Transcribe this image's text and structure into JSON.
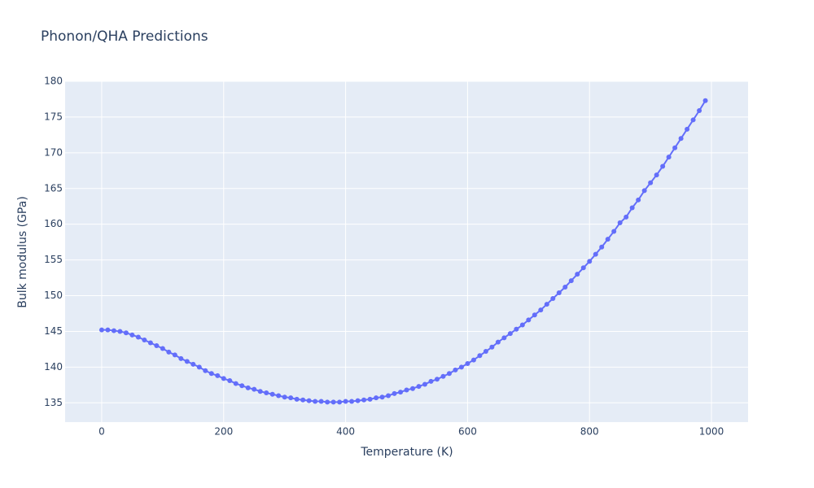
{
  "chart_data": {
    "type": "line",
    "title": "Phonon/QHA Predictions",
    "x_label": "Temperature (K)",
    "y_label": "Bulk modulus (GPa)",
    "x": [
      0,
      10,
      20,
      30,
      40,
      50,
      60,
      70,
      80,
      90,
      100,
      110,
      120,
      130,
      140,
      150,
      160,
      170,
      180,
      190,
      200,
      210,
      220,
      230,
      240,
      250,
      260,
      270,
      280,
      290,
      300,
      310,
      320,
      330,
      340,
      350,
      360,
      370,
      380,
      390,
      400,
      410,
      420,
      430,
      440,
      450,
      460,
      470,
      480,
      490,
      500,
      510,
      520,
      530,
      540,
      550,
      560,
      570,
      580,
      590,
      600,
      610,
      620,
      630,
      640,
      650,
      660,
      670,
      680,
      690,
      700,
      710,
      720,
      730,
      740,
      750,
      760,
      770,
      780,
      790,
      800,
      810,
      820,
      830,
      840,
      850,
      860,
      870,
      880,
      890,
      900,
      910,
      920,
      930,
      940,
      950,
      960,
      970,
      980,
      990
    ],
    "values": [
      145.2,
      145.2,
      145.1,
      145.0,
      144.8,
      144.5,
      144.2,
      143.8,
      143.4,
      143.0,
      142.6,
      142.1,
      141.7,
      141.2,
      140.8,
      140.4,
      140.0,
      139.5,
      139.1,
      138.8,
      138.4,
      138.1,
      137.7,
      137.4,
      137.1,
      136.9,
      136.6,
      136.4,
      136.2,
      136.0,
      135.8,
      135.7,
      135.5,
      135.4,
      135.3,
      135.2,
      135.2,
      135.1,
      135.1,
      135.1,
      135.2,
      135.2,
      135.3,
      135.4,
      135.5,
      135.7,
      135.8,
      136.0,
      136.3,
      136.5,
      136.8,
      137.0,
      137.3,
      137.6,
      138.0,
      138.3,
      138.7,
      139.1,
      139.6,
      140.0,
      140.5,
      141.0,
      141.6,
      142.2,
      142.8,
      143.5,
      144.1,
      144.7,
      145.3,
      145.9,
      146.6,
      147.3,
      148.0,
      148.8,
      149.6,
      150.4,
      151.2,
      152.1,
      153.0,
      153.9,
      154.8,
      155.8,
      156.8,
      157.9,
      159.0,
      160.2,
      161.0,
      162.3,
      163.4,
      164.7,
      165.8,
      166.9,
      168.1,
      169.4,
      170.7,
      172.0,
      173.3,
      174.6,
      175.9,
      177.3
    ],
    "color": "#636efa",
    "xlim": [
      -60,
      1060
    ],
    "xticks": [
      0,
      200,
      400,
      600,
      800,
      1000
    ],
    "ylim": [
      132.3,
      180
    ],
    "yticks": [
      135,
      140,
      145,
      150,
      155,
      160,
      165,
      170,
      175,
      180
    ],
    "grid": true
  }
}
